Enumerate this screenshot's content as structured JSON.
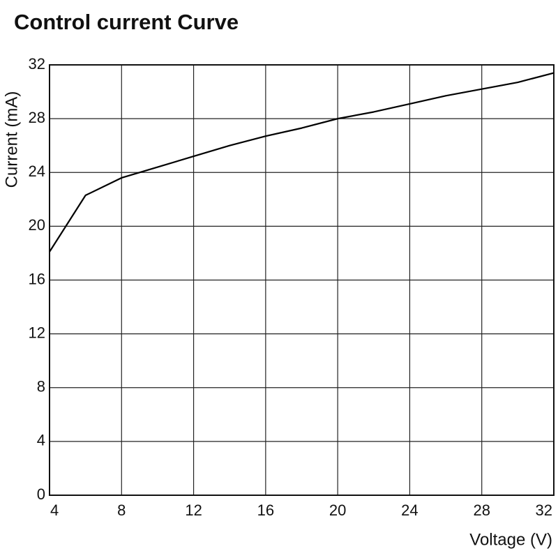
{
  "chart_data": {
    "type": "line",
    "title": "Control current Curve",
    "x_label": "Voltage (V)",
    "y_label": "Current (mA)",
    "x": [
      4,
      6,
      8,
      10,
      12,
      14,
      16,
      18,
      20,
      22,
      24,
      26,
      28,
      30,
      32
    ],
    "series": [
      {
        "name": "Control current",
        "color": "#000000",
        "values": [
          18.1,
          22.3,
          23.6,
          24.4,
          25.2,
          26.0,
          26.7,
          27.3,
          28.0,
          28.5,
          29.1,
          29.7,
          30.2,
          30.7,
          31.4
        ]
      }
    ],
    "xlim": [
      4,
      32
    ],
    "xticks": [
      4,
      8,
      12,
      16,
      20,
      24,
      28,
      32
    ],
    "ylim": [
      0,
      32
    ],
    "yticks": [
      0,
      4,
      8,
      12,
      16,
      20,
      24,
      28,
      32
    ],
    "grid": true
  }
}
